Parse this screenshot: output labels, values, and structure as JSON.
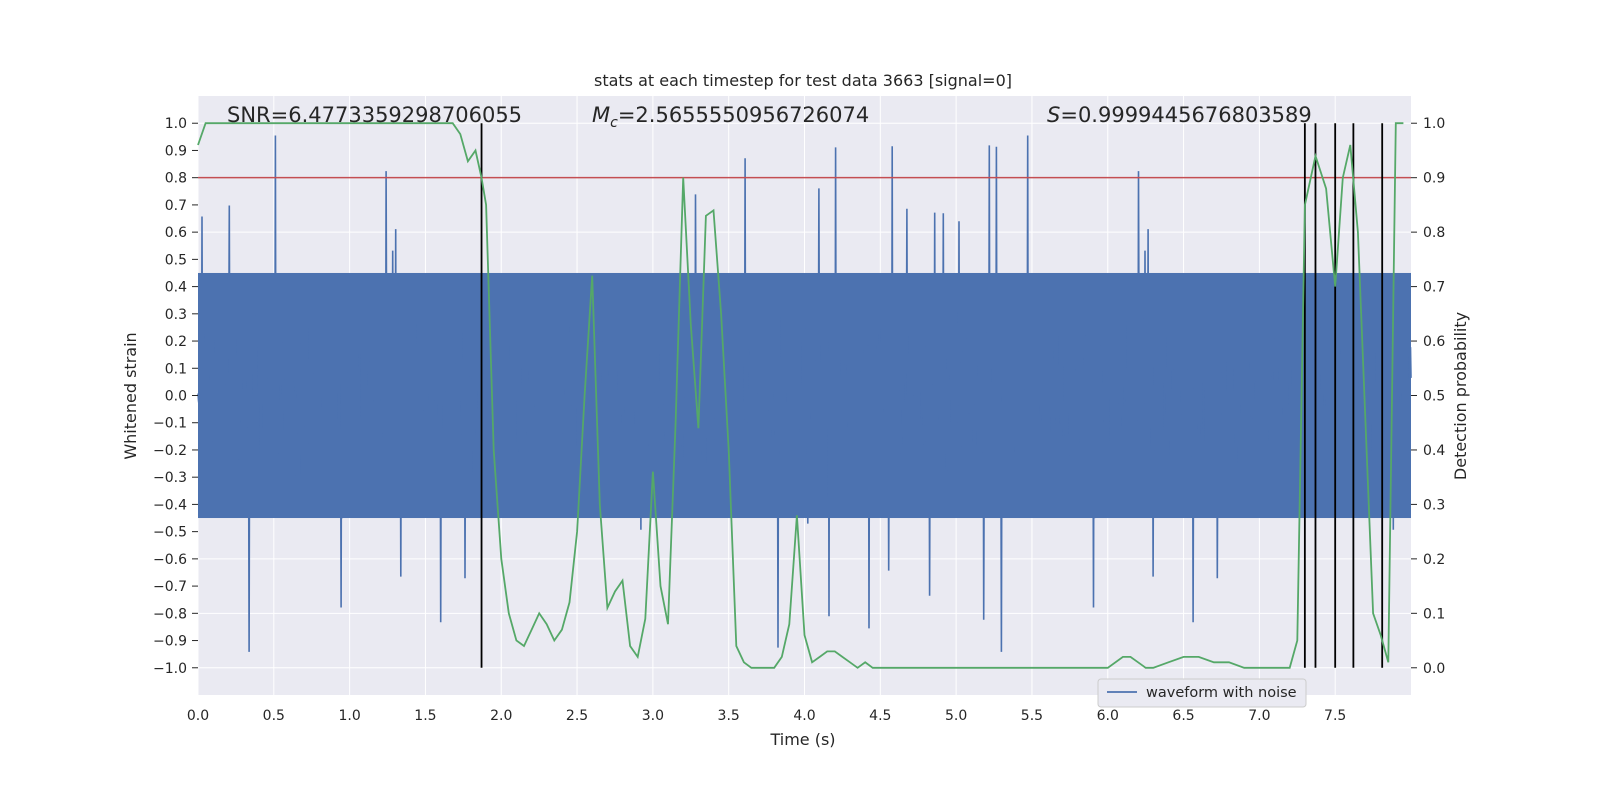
{
  "chart_data": {
    "type": "line",
    "title": "stats at each timestep for test data 3663 [signal=0]",
    "xlabel": "Time (s)",
    "ylabel": "Whitened strain",
    "y2label": "Detection probability",
    "xlim": [
      0.0,
      8.0
    ],
    "ylim": [
      -1.1,
      1.1
    ],
    "y2lim": [
      -0.05,
      1.05
    ],
    "xticks": [
      "0.0",
      "0.5",
      "1.0",
      "1.5",
      "2.0",
      "2.5",
      "3.0",
      "3.5",
      "4.0",
      "4.5",
      "5.0",
      "5.5",
      "6.0",
      "6.5",
      "7.0",
      "7.5"
    ],
    "yticks": [
      "1.0",
      "0.9",
      "0.8",
      "0.7",
      "0.6",
      "0.5",
      "0.4",
      "0.3",
      "0.2",
      "0.1",
      "0.0",
      "-0.1",
      "-0.2",
      "-0.3",
      "-0.4",
      "-0.5",
      "-0.6",
      "-0.7",
      "-0.8",
      "-0.9",
      "-1.0"
    ],
    "y2ticks": [
      "1.0",
      "0.9",
      "0.8",
      "0.7",
      "0.6",
      "0.5",
      "0.4",
      "0.3",
      "0.2",
      "0.1",
      "0.0"
    ],
    "grid": true,
    "legend_position": "bottom-right",
    "annotations": {
      "snr": "SNR=6.4773359298706055",
      "mc_prefix": "M",
      "mc_sub": "c",
      "mc_value": "=2.5655550956726074",
      "s_prefix": "S",
      "s_value": "=0.9999445676803589"
    },
    "threshold": 0.9,
    "vertical_markers_x": [
      1.87,
      7.3,
      7.37,
      7.5,
      7.62,
      7.81
    ],
    "series": [
      {
        "name": "waveform with noise",
        "axis": "left",
        "color": "#4c72b0",
        "note_amplitude": "dense noise band approx -0.45..0.45 with spikes to about ±1.0"
      },
      {
        "axis": "right",
        "color": "#55a868",
        "x": [
          0.0,
          0.05,
          0.1,
          0.2,
          0.3,
          0.4,
          0.5,
          0.6,
          0.7,
          0.8,
          0.9,
          1.0,
          1.1,
          1.2,
          1.3,
          1.4,
          1.5,
          1.6,
          1.68,
          1.73,
          1.78,
          1.83,
          1.87,
          1.9,
          1.95,
          2.0,
          2.05,
          2.1,
          2.15,
          2.2,
          2.25,
          2.3,
          2.35,
          2.4,
          2.45,
          2.5,
          2.55,
          2.6,
          2.65,
          2.7,
          2.75,
          2.8,
          2.85,
          2.9,
          2.95,
          3.0,
          3.05,
          3.1,
          3.15,
          3.2,
          3.25,
          3.3,
          3.35,
          3.4,
          3.45,
          3.5,
          3.55,
          3.6,
          3.65,
          3.7,
          3.75,
          3.8,
          3.85,
          3.9,
          3.95,
          4.0,
          4.05,
          4.1,
          4.15,
          4.2,
          4.25,
          4.3,
          4.35,
          4.4,
          4.45,
          4.5,
          4.55,
          4.6,
          4.7,
          4.8,
          4.9,
          5.0,
          5.1,
          5.2,
          5.3,
          5.4,
          5.5,
          5.6,
          5.7,
          5.8,
          5.9,
          6.0,
          6.1,
          6.15,
          6.2,
          6.25,
          6.3,
          6.4,
          6.5,
          6.6,
          6.7,
          6.8,
          6.9,
          7.0,
          7.1,
          7.2,
          7.25,
          7.3,
          7.37,
          7.44,
          7.5,
          7.55,
          7.6,
          7.65,
          7.7,
          7.75,
          7.8,
          7.85,
          7.9,
          7.95
        ],
        "y": [
          0.96,
          1.0,
          1.0,
          1.0,
          1.0,
          1.0,
          1.0,
          1.0,
          1.0,
          1.0,
          1.0,
          1.0,
          1.0,
          1.0,
          1.0,
          1.0,
          1.0,
          1.0,
          1.0,
          0.98,
          0.93,
          0.95,
          0.9,
          0.85,
          0.4,
          0.2,
          0.1,
          0.05,
          0.04,
          0.07,
          0.1,
          0.08,
          0.05,
          0.07,
          0.12,
          0.25,
          0.5,
          0.72,
          0.3,
          0.11,
          0.14,
          0.16,
          0.04,
          0.02,
          0.09,
          0.36,
          0.15,
          0.08,
          0.45,
          0.9,
          0.63,
          0.44,
          0.83,
          0.84,
          0.65,
          0.4,
          0.04,
          0.01,
          0.0,
          0.0,
          0.0,
          0.0,
          0.02,
          0.08,
          0.28,
          0.06,
          0.01,
          0.02,
          0.03,
          0.03,
          0.02,
          0.01,
          0.0,
          0.01,
          0.0,
          0.0,
          0.0,
          0.0,
          0.0,
          0.0,
          0.0,
          0.0,
          0.0,
          0.0,
          0.0,
          0.0,
          0.0,
          0.0,
          0.0,
          0.0,
          0.0,
          0.0,
          0.02,
          0.02,
          0.01,
          0.0,
          0.0,
          0.01,
          0.02,
          0.02,
          0.01,
          0.01,
          0.0,
          0.0,
          0.0,
          0.0,
          0.05,
          0.85,
          0.94,
          0.88,
          0.7,
          0.9,
          0.96,
          0.8,
          0.45,
          0.1,
          0.06,
          0.01,
          1.0,
          1.0
        ]
      }
    ]
  }
}
